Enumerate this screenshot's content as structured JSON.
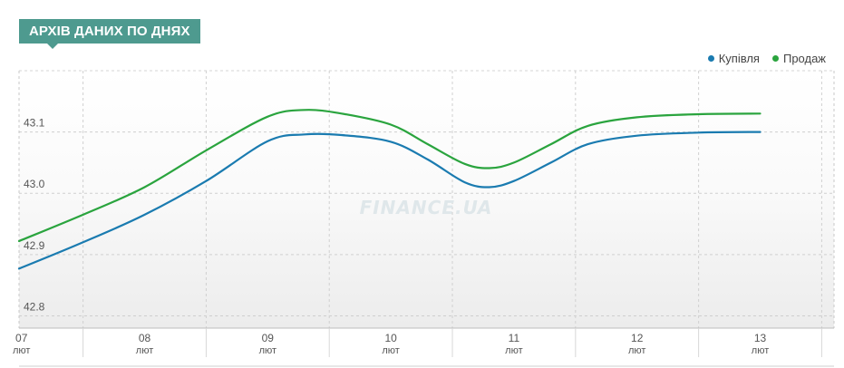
{
  "section": {
    "title": "АРХІВ ДАНИХ ПО ДНЯХ"
  },
  "watermark": "FINANCE.UA",
  "legend": [
    {
      "label": "Купівля",
      "color": "#1a7bb0"
    },
    {
      "label": "Продаж",
      "color": "#2aa43e"
    }
  ],
  "chart_data": {
    "type": "line",
    "categories": [
      "07",
      "08",
      "09",
      "10",
      "11",
      "12",
      "13"
    ],
    "category_sublabel": "лют",
    "x": [
      7,
      8,
      9,
      10,
      11,
      12,
      13
    ],
    "xlim": [
      6.98,
      13.6
    ],
    "ylim": [
      42.78,
      43.2
    ],
    "yticks": [
      42.8,
      42.9,
      43.0,
      43.1
    ],
    "ytick_labels": [
      "42.8",
      "42.9",
      "43.0",
      "43.1"
    ],
    "grid": true,
    "legend_position": "top-right",
    "series": [
      {
        "name": "Купівля",
        "color": "#1a7bb0",
        "points": [
          [
            6.98,
            42.877
          ],
          [
            7.5,
            42.92
          ],
          [
            8.0,
            42.965
          ],
          [
            8.5,
            43.02
          ],
          [
            9.0,
            43.085
          ],
          [
            9.3,
            43.096
          ],
          [
            9.6,
            43.095
          ],
          [
            10.0,
            43.084
          ],
          [
            10.3,
            43.055
          ],
          [
            10.6,
            43.018
          ],
          [
            10.8,
            43.01
          ],
          [
            11.0,
            43.02
          ],
          [
            11.3,
            43.05
          ],
          [
            11.6,
            43.08
          ],
          [
            12.0,
            43.094
          ],
          [
            12.5,
            43.099
          ],
          [
            13.0,
            43.1
          ]
        ]
      },
      {
        "name": "Продаж",
        "color": "#2aa43e",
        "points": [
          [
            6.98,
            42.922
          ],
          [
            7.5,
            42.965
          ],
          [
            8.0,
            43.01
          ],
          [
            8.5,
            43.07
          ],
          [
            9.0,
            43.125
          ],
          [
            9.3,
            43.136
          ],
          [
            9.6,
            43.13
          ],
          [
            10.0,
            43.112
          ],
          [
            10.3,
            43.08
          ],
          [
            10.6,
            43.048
          ],
          [
            10.8,
            43.041
          ],
          [
            11.0,
            43.05
          ],
          [
            11.3,
            43.08
          ],
          [
            11.6,
            43.11
          ],
          [
            12.0,
            43.124
          ],
          [
            12.5,
            43.129
          ],
          [
            13.0,
            43.13
          ]
        ]
      }
    ]
  }
}
